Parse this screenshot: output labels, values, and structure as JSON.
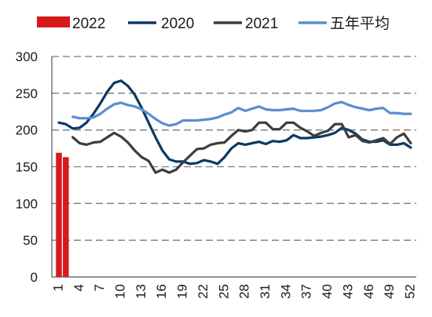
{
  "chart_data": {
    "type": "line",
    "title": "",
    "xlabel": "",
    "ylabel": "",
    "ylim": [
      0,
      300
    ],
    "yticks": [
      0,
      50,
      100,
      150,
      200,
      250,
      300
    ],
    "xlim": [
      1,
      52
    ],
    "xticks": [
      1,
      4,
      7,
      10,
      13,
      16,
      19,
      22,
      25,
      28,
      31,
      34,
      37,
      40,
      43,
      46,
      49,
      52
    ],
    "grid": "horizontal dashed",
    "legend_position": "top",
    "legend": [
      "2022",
      "2020",
      "2021",
      "五年平均"
    ],
    "series": [
      {
        "name": "2022",
        "type": "bar",
        "color": "#d7191c",
        "x": [
          1,
          2
        ],
        "values": [
          169,
          163
        ]
      },
      {
        "name": "2020",
        "type": "line",
        "color": "#0b3a63",
        "x": [
          1,
          2,
          3,
          4,
          5,
          6,
          7,
          8,
          9,
          10,
          11,
          12,
          13,
          14,
          15,
          16,
          17,
          18,
          19,
          20,
          21,
          22,
          23,
          24,
          25,
          26,
          27,
          28,
          29,
          30,
          31,
          32,
          33,
          34,
          35,
          36,
          37,
          38,
          39,
          40,
          41,
          42,
          43,
          44,
          45,
          46,
          47,
          48,
          49,
          50,
          51,
          52
        ],
        "values": [
          210,
          208,
          202,
          203,
          210,
          222,
          236,
          252,
          264,
          267,
          260,
          248,
          230,
          210,
          190,
          172,
          160,
          157,
          157,
          154,
          155,
          159,
          157,
          154,
          163,
          175,
          182,
          180,
          182,
          184,
          181,
          185,
          184,
          186,
          193,
          189,
          189,
          190,
          191,
          193,
          196,
          203,
          200,
          195,
          187,
          184,
          184,
          186,
          180,
          180,
          182,
          176
        ]
      },
      {
        "name": "2021",
        "type": "line",
        "color": "#3d3d3d",
        "x": [
          3,
          4,
          5,
          6,
          7,
          8,
          9,
          10,
          11,
          12,
          13,
          14,
          15,
          16,
          17,
          18,
          19,
          20,
          21,
          22,
          23,
          24,
          25,
          26,
          27,
          28,
          29,
          30,
          31,
          32,
          33,
          34,
          35,
          36,
          37,
          38,
          39,
          40,
          41,
          42,
          43,
          44,
          45,
          46,
          47,
          48,
          49,
          50,
          51,
          52
        ],
        "values": [
          190,
          182,
          180,
          183,
          184,
          190,
          196,
          191,
          183,
          172,
          163,
          158,
          142,
          146,
          142,
          146,
          156,
          165,
          174,
          175,
          180,
          182,
          183,
          192,
          200,
          198,
          200,
          210,
          210,
          201,
          201,
          210,
          210,
          203,
          198,
          192,
          196,
          199,
          208,
          208,
          190,
          193,
          185,
          183,
          186,
          189,
          181,
          190,
          195,
          182
        ]
      },
      {
        "name": "五年平均",
        "type": "line",
        "color": "#5b8dcf",
        "x": [
          3,
          4,
          5,
          6,
          7,
          8,
          9,
          10,
          11,
          12,
          13,
          14,
          15,
          16,
          17,
          18,
          19,
          20,
          21,
          22,
          23,
          24,
          25,
          26,
          27,
          28,
          29,
          30,
          31,
          32,
          33,
          34,
          35,
          36,
          37,
          38,
          39,
          40,
          41,
          42,
          43,
          44,
          45,
          46,
          47,
          48,
          49,
          50,
          51,
          52
        ],
        "values": [
          218,
          216,
          216,
          217,
          222,
          229,
          235,
          237,
          234,
          232,
          228,
          222,
          215,
          209,
          206,
          208,
          213,
          213,
          213,
          214,
          215,
          217,
          221,
          224,
          230,
          226,
          229,
          232,
          228,
          227,
          227,
          228,
          229,
          226,
          226,
          226,
          227,
          231,
          236,
          238,
          234,
          231,
          229,
          227,
          229,
          230,
          223,
          223,
          222,
          222
        ]
      }
    ]
  }
}
